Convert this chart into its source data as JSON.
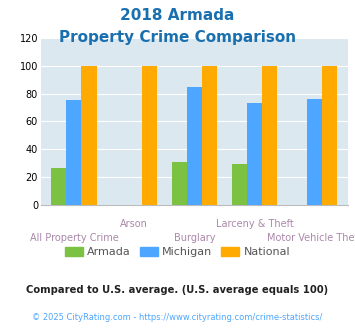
{
  "title_line1": "2018 Armada",
  "title_line2": "Property Crime Comparison",
  "title_color": "#1a6faf",
  "categories": [
    "All Property Crime",
    "Arson",
    "Burglary",
    "Larceny & Theft",
    "Motor Vehicle Theft"
  ],
  "armada": [
    26,
    0,
    31,
    29,
    0
  ],
  "michigan": [
    75,
    0,
    85,
    73,
    76
  ],
  "national": [
    100,
    100,
    100,
    100,
    100
  ],
  "armada_color": "#7bc142",
  "michigan_color": "#4da6ff",
  "national_color": "#ffaa00",
  "ylim": [
    0,
    120
  ],
  "yticks": [
    0,
    20,
    40,
    60,
    80,
    100,
    120
  ],
  "plot_bg": "#dce8f0",
  "footnote1": "Compared to U.S. average. (U.S. average equals 100)",
  "footnote2": "© 2025 CityRating.com - https://www.cityrating.com/crime-statistics/",
  "footnote1_color": "#222222",
  "footnote2_color": "#4da6ff",
  "xlabel_top_indices": [
    1,
    3
  ],
  "xlabel_top_labels": [
    "Arson",
    "Larceny & Theft"
  ],
  "xlabel_bottom_indices": [
    0,
    2,
    4
  ],
  "xlabel_bottom_labels": [
    "All Property Crime",
    "Burglary",
    "Motor Vehicle Theft"
  ],
  "xlabel_color": "#aa88aa",
  "bar_width": 0.25,
  "legend_label_color": "#555555"
}
